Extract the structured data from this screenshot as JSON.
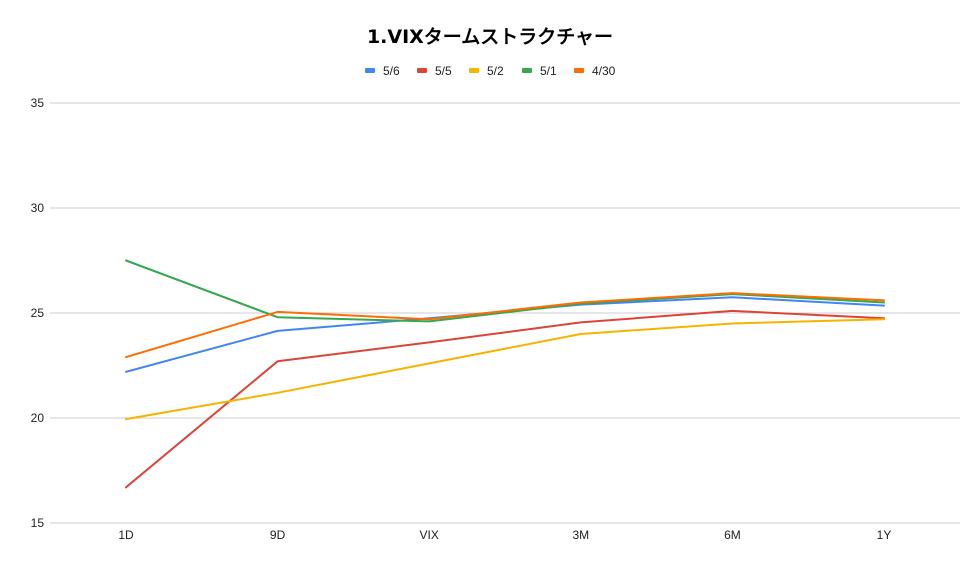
{
  "chart_data": {
    "type": "line",
    "title": "1.VIXタームストラクチャー",
    "xlabel": "",
    "ylabel": "",
    "categories": [
      "1D",
      "9D",
      "VIX",
      "3M",
      "6M",
      "1Y"
    ],
    "ylim": [
      15,
      35
    ],
    "yticks": [
      15,
      20,
      25,
      30,
      35
    ],
    "grid": true,
    "legend": "top",
    "series": [
      {
        "name": "5/6",
        "color": "#4285f4",
        "values": [
          22.2,
          24.15,
          24.75,
          25.4,
          25.75,
          25.35
        ]
      },
      {
        "name": "5/5",
        "color": "#db4437",
        "values": [
          16.7,
          22.7,
          23.6,
          24.55,
          25.1,
          24.75
        ]
      },
      {
        "name": "5/2",
        "color": "#f4b400",
        "values": [
          19.95,
          21.2,
          22.6,
          24.0,
          24.5,
          24.7
        ]
      },
      {
        "name": "5/1",
        "color": "#34a853",
        "values": [
          27.5,
          24.8,
          24.6,
          25.45,
          25.9,
          25.5
        ]
      },
      {
        "name": "4/30",
        "color": "#ff6d01",
        "values": [
          22.9,
          25.05,
          24.7,
          25.5,
          25.95,
          25.6
        ]
      }
    ]
  }
}
